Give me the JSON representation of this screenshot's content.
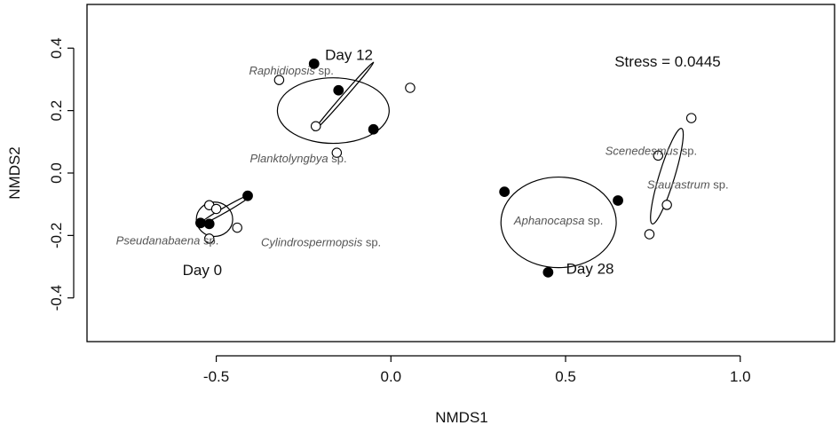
{
  "chart_data": {
    "type": "scatter",
    "xlabel": "NMDS1",
    "ylabel": "NMDS2",
    "xlim": [
      -0.87,
      1.27
    ],
    "ylim": [
      -0.54,
      0.54
    ],
    "x_ticks": [
      {
        "value": -0.5,
        "label": "-0.5"
      },
      {
        "value": 0.0,
        "label": "0.0"
      },
      {
        "value": 0.5,
        "label": "0.5"
      },
      {
        "value": 1.0,
        "label": "1.0"
      }
    ],
    "y_ticks": [
      {
        "value": -0.4,
        "label": "-0.4"
      },
      {
        "value": -0.2,
        "label": "-0.2"
      },
      {
        "value": 0.0,
        "label": "0.0"
      },
      {
        "value": 0.2,
        "label": "0.2"
      },
      {
        "value": 0.4,
        "label": "0.4"
      }
    ],
    "stress_text": "Stress = 0.0445",
    "groups": [
      {
        "name": "Day 0",
        "label_pos": [
          -0.54,
          -0.31
        ],
        "filled_points": [
          [
            -0.545,
            -0.16
          ],
          [
            -0.52,
            -0.163
          ],
          [
            -0.41,
            -0.073
          ]
        ],
        "open_points": [
          [
            -0.52,
            -0.103
          ],
          [
            -0.5,
            -0.115
          ],
          [
            -0.52,
            -0.21
          ],
          [
            -0.44,
            -0.175
          ]
        ],
        "ellipse": {
          "cx": -0.505,
          "cy": -0.148,
          "rx": 0.052,
          "ry": 0.055,
          "angle": 0
        },
        "line_ellipse": {
          "cx": -0.475,
          "cy": -0.118,
          "rx": 0.09,
          "ry": 0.008,
          "angle": -30
        }
      },
      {
        "name": "Day 12",
        "label_pos": [
          -0.12,
          0.38
        ],
        "filled_points": [
          [
            -0.22,
            0.35
          ],
          [
            -0.15,
            0.265
          ],
          [
            -0.05,
            0.14
          ]
        ],
        "open_points": [
          [
            -0.32,
            0.298
          ],
          [
            0.055,
            0.273
          ],
          [
            -0.215,
            0.15
          ],
          [
            -0.155,
            0.065
          ]
        ],
        "ellipse": {
          "cx": -0.165,
          "cy": 0.2,
          "rx": 0.16,
          "ry": 0.105,
          "angle": 0
        },
        "line_ellipse": {
          "cx": -0.135,
          "cy": 0.245,
          "rx": 0.13,
          "ry": 0.006,
          "angle": -49
        }
      },
      {
        "name": "Day 28",
        "label_pos": [
          0.57,
          -0.305
        ],
        "filled_points": [
          [
            0.325,
            -0.06
          ],
          [
            0.65,
            -0.088
          ],
          [
            0.45,
            -0.318
          ]
        ],
        "open_points": [],
        "ellipse": {
          "cx": 0.48,
          "cy": -0.158,
          "rx": 0.165,
          "ry": 0.145,
          "angle": 0
        }
      },
      {
        "name": "",
        "filled_points": [],
        "open_points": [
          [
            0.86,
            0.176
          ],
          [
            0.765,
            0.056
          ],
          [
            0.79,
            -0.102
          ],
          [
            0.74,
            -0.196
          ]
        ],
        "ellipse": {
          "cx": 0.79,
          "cy": -0.01,
          "rx": 0.022,
          "ry": 0.16,
          "angle": 17
        }
      }
    ],
    "species_labels": [
      {
        "genus": "Raphidiopsis",
        "suffix": " sp.",
        "x": -0.285,
        "y": 0.33
      },
      {
        "genus": "Planktolyngbya",
        "suffix": " sp.",
        "x": -0.265,
        "y": 0.048
      },
      {
        "genus": "Pseudanabaena",
        "suffix": " sp.",
        "x": -0.64,
        "y": -0.215
      },
      {
        "genus": "Cylindrospermopsis",
        "suffix": " sp.",
        "x": -0.2,
        "y": -0.22
      },
      {
        "genus": "Aphanocapsa",
        "suffix": " sp.",
        "x": 0.48,
        "y": -0.15
      },
      {
        "genus": "Scenedesmus",
        "suffix": " sp.",
        "x": 0.745,
        "y": 0.073
      },
      {
        "genus": "Staurastrum",
        "suffix": " sp.",
        "x": 0.85,
        "y": -0.035
      }
    ]
  }
}
